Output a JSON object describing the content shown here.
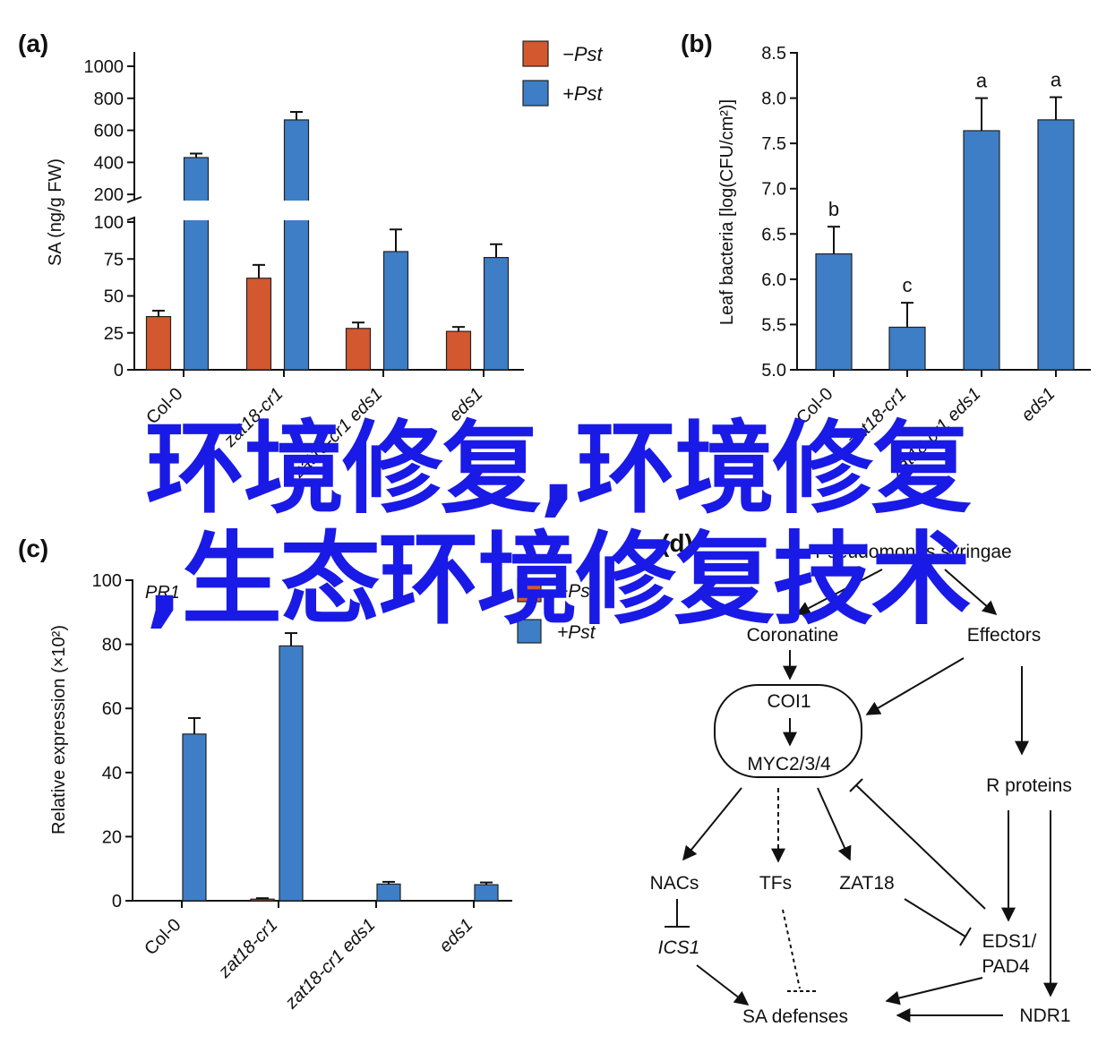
{
  "colors": {
    "minus": "#d3582f",
    "plus": "#3d7ec6",
    "axis": "#111111",
    "overlay_text": "#1a1ae6"
  },
  "overlay": {
    "line1": "环境修复,环境修复",
    "line2": ",生态环境修复技术"
  },
  "chart_data": [
    {
      "panel": "(a)",
      "type": "bar",
      "ylabel": "SA (ng/g FW)",
      "categories": [
        "Col-0",
        "zat18-cr1",
        "zat18-cr1 eds1",
        "eds1"
      ],
      "series": [
        {
          "name": "−Pst",
          "values": [
            36,
            62,
            28,
            26
          ],
          "errors": [
            4,
            9,
            4,
            3
          ]
        },
        {
          "name": "+Pst",
          "values": [
            430,
            665,
            80,
            76
          ],
          "errors": [
            25,
            50,
            15,
            9
          ]
        }
      ],
      "axis_break": true,
      "lower_ylim": [
        0,
        100
      ],
      "lower_ticks": [
        0,
        25,
        50,
        75,
        100
      ],
      "upper_ylim": [
        100,
        1000
      ],
      "upper_ticks": [
        200,
        400,
        600,
        800,
        1000
      ],
      "legend": [
        "−Pst",
        "+Pst"
      ],
      "legend_position": "top-right"
    },
    {
      "panel": "(b)",
      "type": "bar",
      "ylabel": "Leaf bacteria [log(CFU/cm²)]",
      "categories": [
        "Col-0",
        "zat18-cr1",
        "zat18-cr1 eds1",
        "eds1"
      ],
      "values": [
        6.28,
        5.47,
        7.64,
        7.76
      ],
      "errors": [
        0.3,
        0.27,
        0.36,
        0.25
      ],
      "letters": [
        "b",
        "c",
        "a",
        "a"
      ],
      "ylim": [
        5.0,
        8.5
      ],
      "ticks": [
        "5.0",
        "5.5",
        "6.0",
        "6.5",
        "7.0",
        "7.5",
        "8.0",
        "8.5"
      ]
    },
    {
      "panel": "(c)",
      "type": "bar",
      "title": "PR1",
      "ylabel": "Relative expression (×10²)",
      "categories": [
        "Col-0",
        "zat18-cr1",
        "zat18-cr1 eds1",
        "eds1"
      ],
      "series": [
        {
          "name": "−Pst",
          "values": [
            0,
            0.5,
            0,
            0
          ],
          "errors": [
            0,
            0.3,
            0,
            0
          ]
        },
        {
          "name": "+Pst",
          "values": [
            52,
            79.5,
            5.2,
            5
          ],
          "errors": [
            5,
            4,
            0.7,
            0.7
          ]
        }
      ],
      "ylim": [
        0,
        100
      ],
      "ticks": [
        0,
        20,
        40,
        60,
        80,
        100
      ],
      "legend": [
        "−Pst",
        "+Pst"
      ]
    }
  ],
  "diagram": {
    "panel": "(d)",
    "nodes": {
      "pst": "Pseudomonas syringae",
      "coronatine": "Coronatine",
      "effectors": "Effectors",
      "coi1": "COI1",
      "myc": "MYC2/3/4",
      "r_proteins": "R proteins",
      "nacs": "NACs",
      "tfs": "TFs",
      "zat18": "ZAT18",
      "ics1": "ICS1",
      "eds1_pad4_line1": "EDS1/",
      "eds1_pad4_line2": "PAD4",
      "sa_defenses": "SA defenses",
      "ndr1": "NDR1"
    }
  }
}
